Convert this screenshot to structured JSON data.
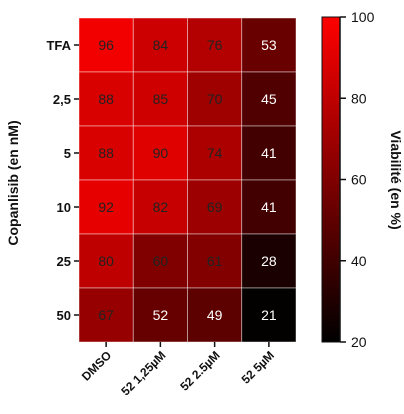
{
  "chart_data": {
    "type": "heatmap",
    "title": "",
    "xlabel": "",
    "ylabel": "Copanlisib (en nM)",
    "columns": [
      "DMSO",
      "52 1,25µM",
      "52 2.5µM",
      "52 5µM"
    ],
    "rows": [
      "TFA",
      "2,5",
      "5",
      "10",
      "25",
      "50"
    ],
    "values": [
      [
        96,
        84,
        76,
        53
      ],
      [
        88,
        85,
        70,
        45
      ],
      [
        88,
        90,
        74,
        41
      ],
      [
        92,
        82,
        69,
        41
      ],
      [
        80,
        60,
        61,
        28
      ],
      [
        67,
        52,
        49,
        21
      ]
    ],
    "colorbar": {
      "label": "Viabilité (en %)",
      "min": 20,
      "max": 100,
      "ticks": [
        20,
        40,
        60,
        80,
        100
      ],
      "color_low": "#000000",
      "color_high": "#ff0000"
    },
    "grid": true
  }
}
